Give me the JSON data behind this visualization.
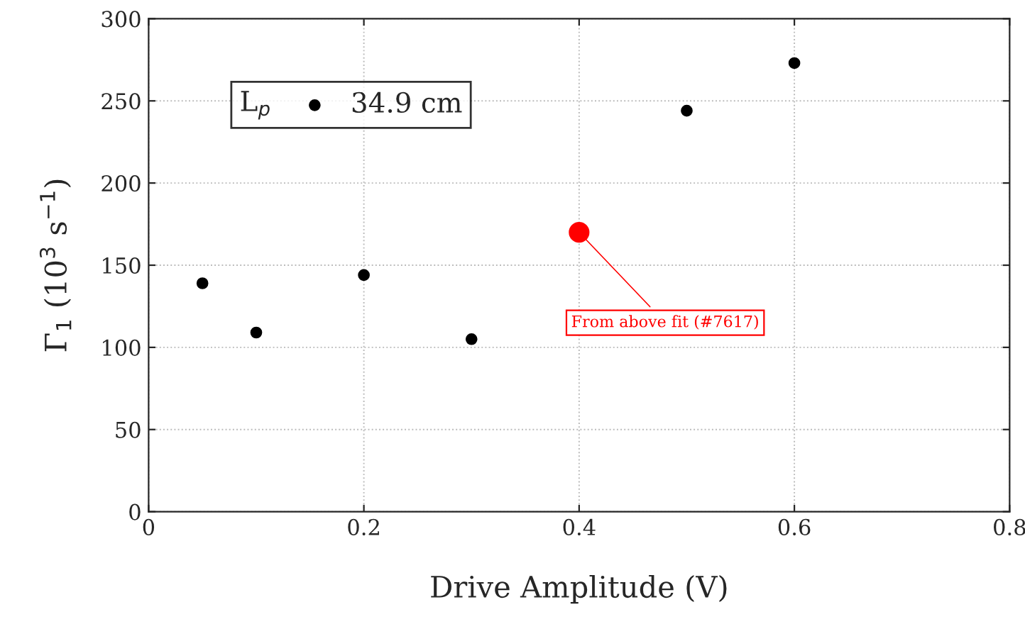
{
  "chart_data": {
    "type": "scatter",
    "xlabel": "Drive Amplitude (V)",
    "ylabel": "Γ$_{1}$ (10$^{3}$ s$^{−1}$)",
    "legend_title": "L$_{p}$",
    "series": [
      {
        "name": "34.9 cm",
        "color": "#000000",
        "x": [
          0.05,
          0.1,
          0.2,
          0.3,
          0.5,
          0.6
        ],
        "values": [
          139,
          109,
          144,
          105,
          244,
          273
        ]
      },
      {
        "color": "#ff0000",
        "x": [
          0.4
        ],
        "values": [
          170
        ]
      }
    ],
    "annotations": [
      {
        "text": "From above fit (#7617)",
        "x": 0.4,
        "y": 170
      }
    ],
    "xlim": [
      0,
      0.8
    ],
    "xticks": [
      0,
      0.2,
      0.4,
      0.6,
      0.8
    ],
    "ylim": [
      0,
      300
    ],
    "yticks": [
      0,
      50,
      100,
      150,
      200,
      250,
      300
    ],
    "grid": true,
    "legend": "top left",
    "marker": "circle"
  }
}
